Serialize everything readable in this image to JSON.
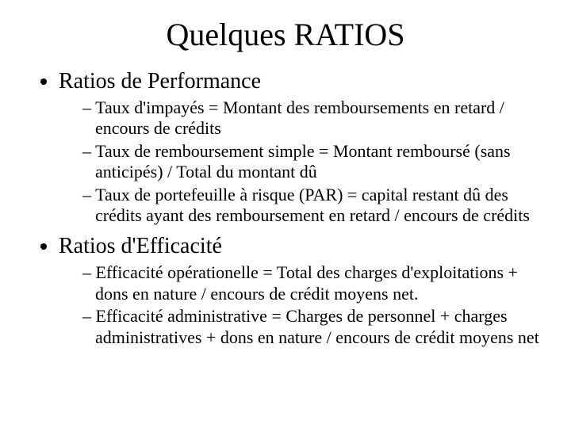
{
  "title": "Quelques RATIOS",
  "sections": [
    {
      "heading": "Ratios de Performance",
      "items": [
        "Taux d'impayés = Montant des remboursements en retard / encours de crédits",
        "Taux de remboursement simple = Montant remboursé (sans anticipés) / Total du montant dû",
        "Taux de portefeuille à risque (PAR) = capital restant dû des crédits ayant des remboursement en retard / encours de crédits"
      ]
    },
    {
      "heading": "Ratios d'Efficacité",
      "items": [
        "Efficacité opérationelle = Total des charges d'exploitations + dons en nature / encours de crédit moyens net.",
        "Efficacité administrative = Charges de personnel + charges administratives + dons en nature / encours de crédit moyens net"
      ]
    }
  ],
  "style": {
    "background_color": "#ffffff",
    "text_color": "#000000",
    "font_family": "Times New Roman",
    "title_fontsize": 40,
    "level1_fontsize": 28,
    "level2_fontsize": 22,
    "level1_bullet": "disc",
    "level2_bullet": "–",
    "slide_width": 720,
    "slide_height": 540
  }
}
